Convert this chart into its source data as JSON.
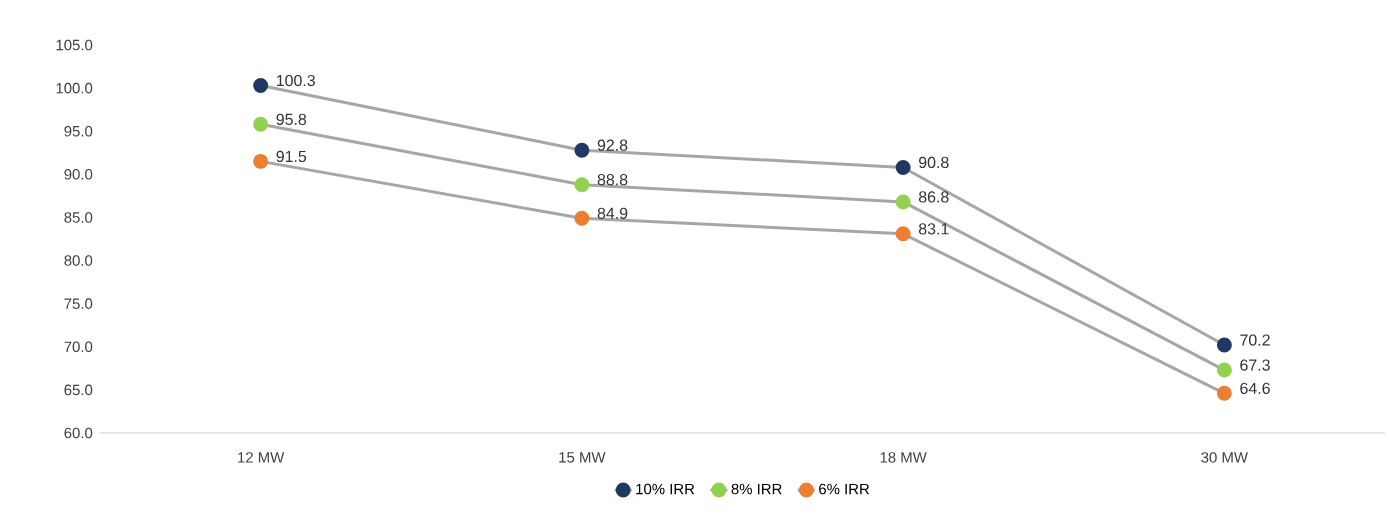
{
  "chart_data": {
    "type": "line",
    "categories": [
      "12 MW",
      "15 MW",
      "18 MW",
      "30 MW"
    ],
    "series": [
      {
        "name": "10% IRR",
        "color": "#1f3864",
        "values": [
          100.3,
          92.8,
          90.8,
          70.2
        ]
      },
      {
        "name": "8% IRR",
        "color": "#92d050",
        "values": [
          95.8,
          88.8,
          86.8,
          67.3
        ]
      },
      {
        "name": "6% IRR",
        "color": "#ed7d31",
        "values": [
          91.5,
          84.9,
          83.1,
          64.6
        ]
      }
    ],
    "ylim": [
      60,
      105
    ],
    "yticks": [
      {
        "value": 60,
        "label": "60.0"
      },
      {
        "value": 65,
        "label": "65.0"
      },
      {
        "value": 70,
        "label": "70.0"
      },
      {
        "value": 75,
        "label": "75.0"
      },
      {
        "value": 80,
        "label": "80.0"
      },
      {
        "value": 85,
        "label": "85.0"
      },
      {
        "value": 90,
        "label": "90.0"
      },
      {
        "value": 95,
        "label": "95.0"
      },
      {
        "value": 100,
        "label": "100.0"
      },
      {
        "value": 105,
        "label": "105.0"
      }
    ],
    "grid": false,
    "legend": "bottom",
    "marker": "circle",
    "line_style": "solid",
    "data_labels": true
  }
}
